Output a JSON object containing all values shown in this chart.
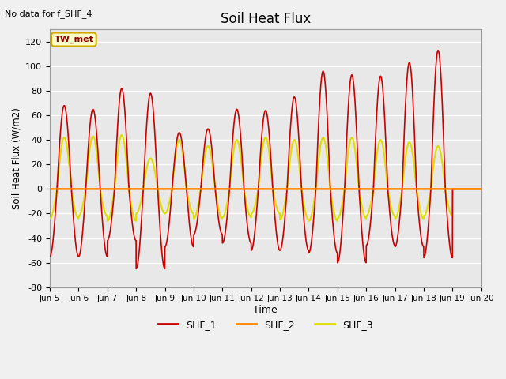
{
  "title": "Soil Heat Flux",
  "xlabel": "Time",
  "ylabel": "Soil Heat Flux (W/m2)",
  "note": "No data for f_SHF_4",
  "annotation": "TW_met",
  "ylim": [
    -80,
    130
  ],
  "xlim": [
    5.0,
    20.0
  ],
  "xtick_labels": [
    "Jun 5",
    "Jun 6",
    "Jun 7",
    "Jun 8",
    "Jun 9",
    "Jun 10",
    "Jun 11",
    "Jun 12",
    "Jun 13",
    "Jun 14",
    "Jun 15",
    "Jun 16",
    "Jun 17",
    "Jun 18",
    "Jun 19",
    "Jun 20"
  ],
  "xtick_positions": [
    5,
    6,
    7,
    8,
    9,
    10,
    11,
    12,
    13,
    14,
    15,
    16,
    17,
    18,
    19,
    20
  ],
  "ytick_labels": [
    "-80",
    "-60",
    "-40",
    "-20",
    "0",
    "20",
    "40",
    "60",
    "80",
    "100",
    "120"
  ],
  "ytick_positions": [
    -80,
    -60,
    -40,
    -20,
    0,
    20,
    40,
    60,
    80,
    100,
    120
  ],
  "color_shf1": "#cc0000",
  "color_shf2": "#ff8800",
  "color_shf3": "#dddd00",
  "bg_color": "#e8e8e8",
  "fig_bg": "#f0f0f0",
  "legend_labels": [
    "SHF_1",
    "SHF_2",
    "SHF_3"
  ],
  "shf1_day_peaks": [
    68,
    65,
    82,
    78,
    46,
    49,
    65,
    64,
    75,
    96,
    93,
    92,
    103,
    113
  ],
  "shf1_night_troughs": [
    -55,
    -55,
    -42,
    -65,
    -47,
    -37,
    -44,
    -50,
    -50,
    -52,
    -60,
    -46,
    -47,
    -56
  ],
  "shf3_day_peaks": [
    42,
    43,
    44,
    25,
    40,
    35,
    40,
    42,
    40,
    42,
    42,
    40,
    38,
    35
  ],
  "shf3_night_troughs": [
    -24,
    -22,
    -26,
    -20,
    -20,
    -24,
    -23,
    -20,
    -25,
    -26,
    -24,
    -22,
    -24,
    -22
  ]
}
